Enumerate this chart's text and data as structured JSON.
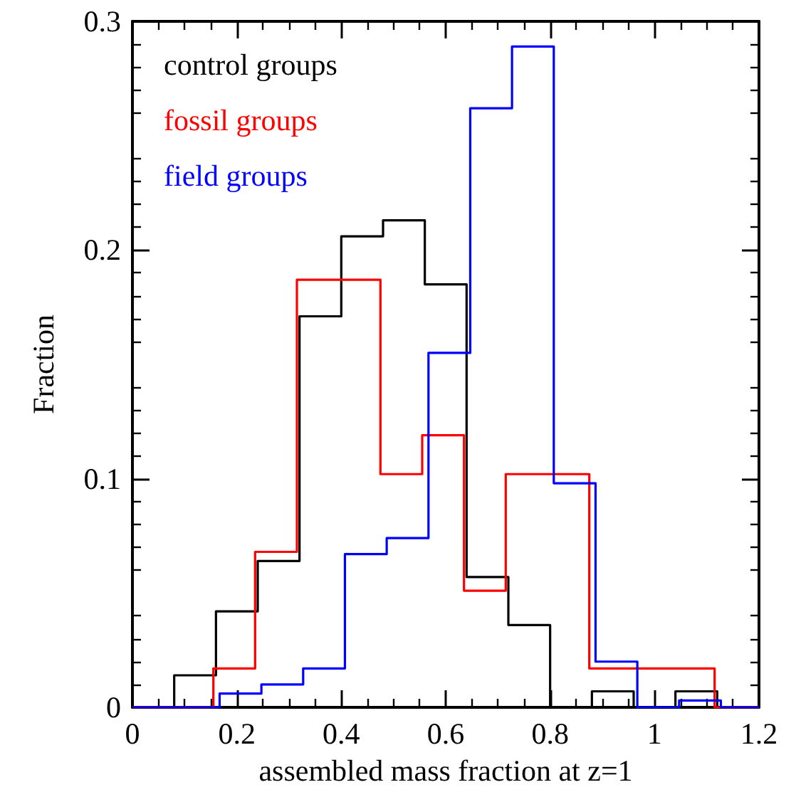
{
  "chart_data": {
    "type": "step",
    "xlabel": "assembled mass fraction at z=1",
    "ylabel": "Fraction",
    "xlim": [
      0,
      1.2
    ],
    "xticks": [
      0,
      0.2,
      0.4,
      0.6,
      0.8,
      1,
      1.2
    ],
    "ylim": [
      0,
      0.3
    ],
    "yticks": [
      0,
      0.1,
      0.2,
      0.3
    ],
    "legend": "top left",
    "marker": "none",
    "series": [
      {
        "name": "control groups",
        "color": "#000000",
        "x": [
          0,
          0.08,
          0.16,
          0.24,
          0.32,
          0.4,
          0.48,
          0.56,
          0.64,
          0.72,
          0.8,
          0.88,
          0.96,
          1.04,
          1.12,
          1.2
        ],
        "values": [
          0,
          0.014,
          0.042,
          0.064,
          0.171,
          0.206,
          0.213,
          0.185,
          0.057,
          0.036,
          0,
          0.007,
          0,
          0.007,
          0,
          0
        ]
      },
      {
        "name": "fossil groups",
        "color": "#ff0000",
        "x": [
          0,
          0.155,
          0.235,
          0.315,
          0.395,
          0.475,
          0.555,
          0.635,
          0.715,
          0.795,
          0.875,
          0.955,
          1.035,
          1.115,
          1.2
        ],
        "values": [
          0,
          0.017,
          0.068,
          0.187,
          0.187,
          0.102,
          0.119,
          0.051,
          0.102,
          0.102,
          0.017,
          0.017,
          0.017,
          0,
          0
        ]
      },
      {
        "name": "field groups",
        "color": "#0000ff",
        "x": [
          0,
          0.167,
          0.247,
          0.327,
          0.407,
          0.487,
          0.567,
          0.647,
          0.727,
          0.807,
          0.887,
          0.967,
          1.047,
          1.127,
          1.2
        ],
        "values": [
          0,
          0.006,
          0.01,
          0.017,
          0.067,
          0.074,
          0.155,
          0.262,
          0.289,
          0.098,
          0.02,
          0,
          0.003,
          0,
          0
        ]
      }
    ]
  }
}
